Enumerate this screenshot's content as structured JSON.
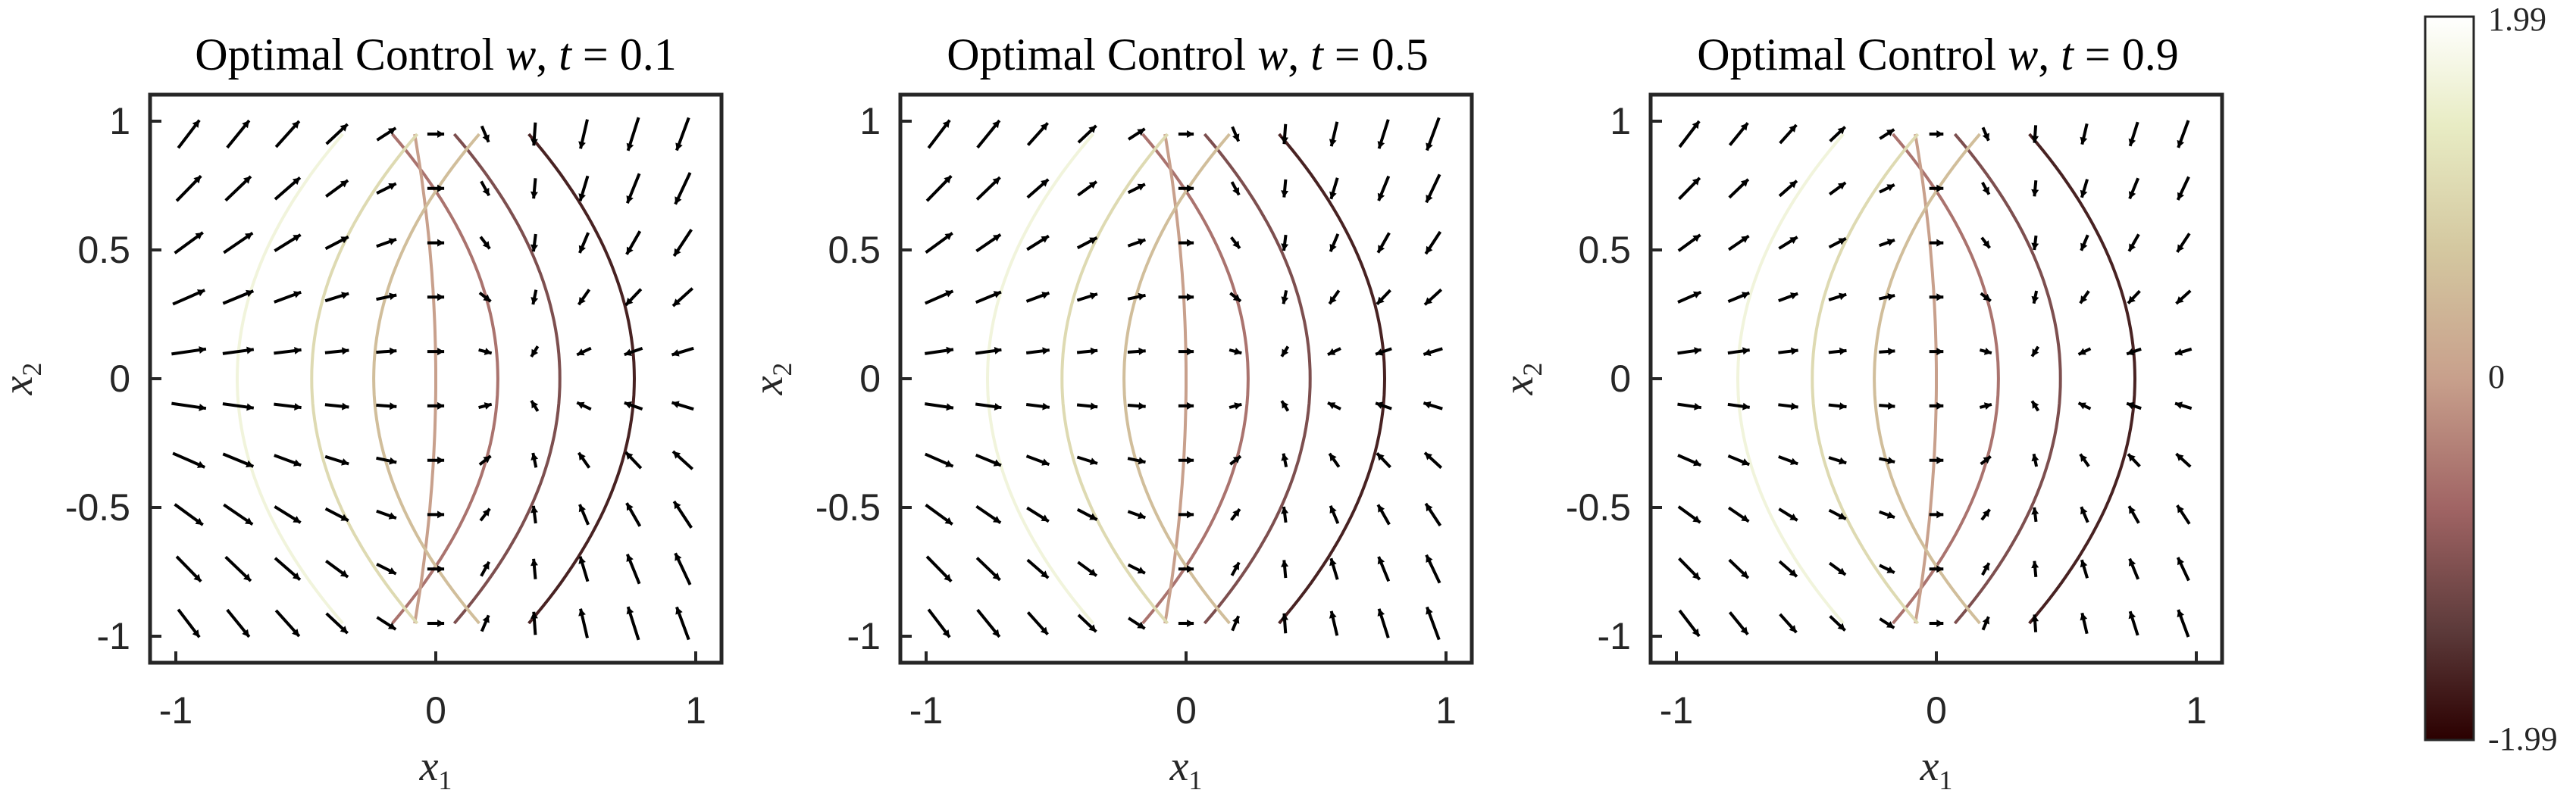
{
  "chart_data": {
    "type": "quiver-contour",
    "panels": [
      {
        "title": "Optimal Control ⃗w, t = 0.1",
        "title_prefix": "Optimal Control ",
        "t": 0.1,
        "xlabel": "x1",
        "ylabel": "x2",
        "xlim": [
          -1,
          1
        ],
        "ylim": [
          -1,
          1
        ],
        "xticks": [
          "-1",
          "0",
          "1"
        ],
        "yticks": [
          "1",
          "0.5",
          "0",
          "-0.5",
          "-1"
        ]
      },
      {
        "title": "Optimal Control ⃗w, t = 0.5",
        "title_prefix": "Optimal Control ",
        "t": 0.5,
        "xlabel": "x1",
        "ylabel": "x2",
        "xlim": [
          -1,
          1
        ],
        "ylim": [
          -1,
          1
        ],
        "xticks": [
          "-1",
          "0",
          "1"
        ],
        "yticks": [
          "1",
          "0.5",
          "0",
          "-0.5",
          "-1"
        ]
      },
      {
        "title": "Optimal Control ⃗w, t = 0.9",
        "title_prefix": "Optimal Control ",
        "t": 0.9,
        "xlabel": "x1",
        "ylabel": "x2",
        "xlim": [
          -1,
          1
        ],
        "ylim": [
          -1,
          1
        ],
        "xticks": [
          "-1",
          "0",
          "1"
        ],
        "yticks": [
          "1",
          "0.5",
          "0",
          "-0.5",
          "-1"
        ]
      }
    ],
    "contour_levels": [
      -1.6,
      -1.0,
      -0.5,
      0.0,
      0.5,
      1.0,
      1.6
    ],
    "colorbar": {
      "min": -1.99,
      "max": 1.99,
      "tick_labels": [
        "1.99",
        "0",
        "-1.99"
      ],
      "colors_low_to_high": [
        "#2b0000",
        "#5c3a3a",
        "#a06464",
        "#c8a08c",
        "#d4c8a0",
        "#e8ecc4",
        "#ffffff"
      ]
    },
    "grid": false,
    "legend": "none"
  }
}
